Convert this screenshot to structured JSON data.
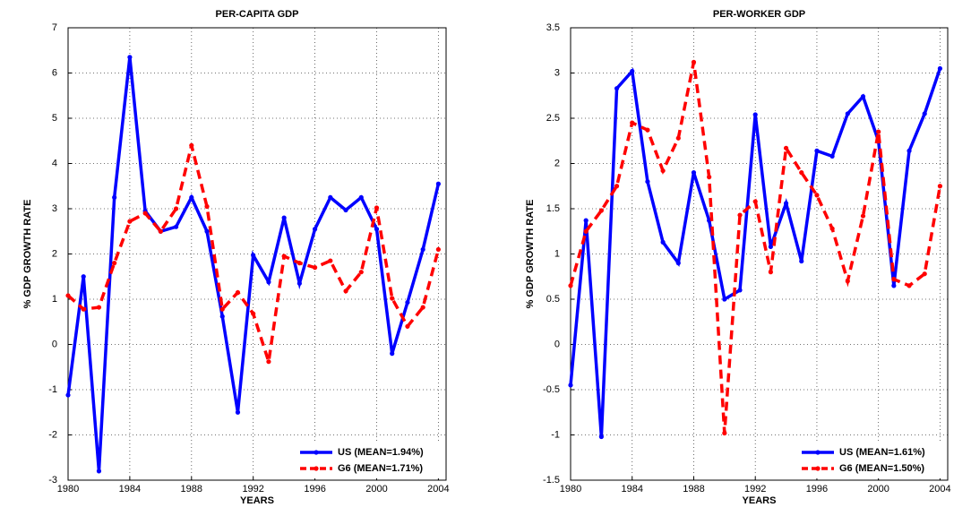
{
  "chart_data": [
    {
      "type": "line",
      "title": "PER-CAPITA GDP",
      "x_label": "YEARS",
      "y_label": "% GDP GROWTH RATE",
      "x": [
        1980,
        1981,
        1982,
        1983,
        1984,
        1985,
        1986,
        1987,
        1988,
        1989,
        1990,
        1991,
        1992,
        1993,
        1994,
        1995,
        1996,
        1997,
        1998,
        1999,
        2000,
        2001,
        2002,
        2003,
        2004
      ],
      "xlim": [
        1980,
        2004.5
      ],
      "xticks": [
        1980,
        1984,
        1988,
        1992,
        1996,
        2000,
        2004
      ],
      "ylim": [
        -3,
        7
      ],
      "yticks": [
        -3,
        -2,
        -1,
        0,
        1,
        2,
        3,
        4,
        5,
        6,
        7
      ],
      "grid": true,
      "legend_position": "lower right",
      "series": [
        {
          "name": "US (MEAN=1.94%)",
          "color": "#0000ff",
          "dashed": false,
          "values": [
            -1.12,
            1.5,
            -2.8,
            3.25,
            6.35,
            2.95,
            2.5,
            2.6,
            3.25,
            2.5,
            0.62,
            -1.5,
            1.97,
            1.38,
            2.8,
            1.35,
            2.55,
            3.25,
            2.97,
            3.25,
            2.55,
            -0.2,
            0.93,
            2.1,
            3.55
          ]
        },
        {
          "name": "G6 (MEAN=1.71%)",
          "color": "#ff0000",
          "dashed": true,
          "values": [
            1.08,
            0.78,
            0.82,
            1.8,
            2.72,
            2.9,
            2.5,
            3.0,
            4.4,
            3.05,
            0.78,
            1.15,
            0.68,
            -0.38,
            1.95,
            1.8,
            1.7,
            1.85,
            1.18,
            1.6,
            3.02,
            1.02,
            0.4,
            0.82,
            2.1
          ]
        }
      ]
    },
    {
      "type": "line",
      "title": "PER-WORKER GDP",
      "x_label": "YEARS",
      "y_label": "% GDP GROWTH RATE",
      "x": [
        1980,
        1981,
        1982,
        1983,
        1984,
        1985,
        1986,
        1987,
        1988,
        1989,
        1990,
        1991,
        1992,
        1993,
        1994,
        1995,
        1996,
        1997,
        1998,
        1999,
        2000,
        2001,
        2002,
        2003,
        2004
      ],
      "xlim": [
        1980,
        2004.5
      ],
      "xticks": [
        1980,
        1984,
        1988,
        1992,
        1996,
        2000,
        2004
      ],
      "ylim": [
        -1.5,
        3.5
      ],
      "yticks": [
        -1.5,
        -1,
        -0.5,
        0,
        0.5,
        1,
        1.5,
        2,
        2.5,
        3,
        3.5
      ],
      "grid": true,
      "legend_position": "lower right",
      "series": [
        {
          "name": "US (MEAN=1.61%)",
          "color": "#0000ff",
          "dashed": false,
          "values": [
            -0.45,
            1.37,
            -1.02,
            2.83,
            3.02,
            1.8,
            1.13,
            0.9,
            1.9,
            1.37,
            0.5,
            0.6,
            2.54,
            1.08,
            1.56,
            0.92,
            2.14,
            2.08,
            2.55,
            2.74,
            2.25,
            0.65,
            2.14,
            2.55,
            3.05
          ]
        },
        {
          "name": "G6 (MEAN=1.50%)",
          "color": "#ff0000",
          "dashed": true,
          "values": [
            0.65,
            1.25,
            1.48,
            1.75,
            2.45,
            2.37,
            1.92,
            2.28,
            3.12,
            1.85,
            -0.98,
            1.43,
            1.58,
            0.8,
            2.17,
            1.9,
            1.65,
            1.28,
            0.7,
            1.42,
            2.35,
            0.72,
            0.65,
            0.78,
            1.75
          ]
        }
      ]
    }
  ]
}
